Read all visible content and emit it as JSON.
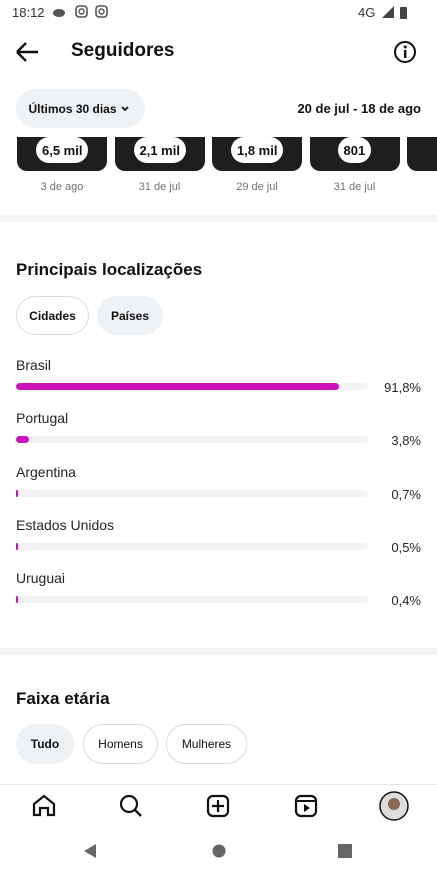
{
  "status_bar": {
    "time": "18:12",
    "network": "4G"
  },
  "header": {
    "title": "Seguidores"
  },
  "filter": {
    "period": "Últimos 30 dias",
    "date_range": "20 de jul - 18 de ago"
  },
  "reels": [
    {
      "count": "6,5 mil",
      "date": "3 de ago"
    },
    {
      "count": "2,1 mil",
      "date": "31 de jul"
    },
    {
      "count": "1,8 mil",
      "date": "29 de jul"
    },
    {
      "count": "801",
      "date": "31 de jul"
    }
  ],
  "locations": {
    "title": "Principais localizações",
    "tabs": [
      "Cidades",
      "Países"
    ],
    "items": [
      {
        "name": "Brasil",
        "value": 91.8,
        "label": "91,8%"
      },
      {
        "name": "Portugal",
        "value": 3.8,
        "label": "3,8%"
      },
      {
        "name": "Argentina",
        "value": 0.7,
        "label": "0,7%"
      },
      {
        "name": "Estados Unidos",
        "value": 0.5,
        "label": "0,5%"
      },
      {
        "name": "Uruguai",
        "value": 0.4,
        "label": "0,4%"
      }
    ]
  },
  "age_range": {
    "title": "Faixa etária",
    "tabs": [
      "Tudo",
      "Homens",
      "Mulheres"
    ]
  }
}
